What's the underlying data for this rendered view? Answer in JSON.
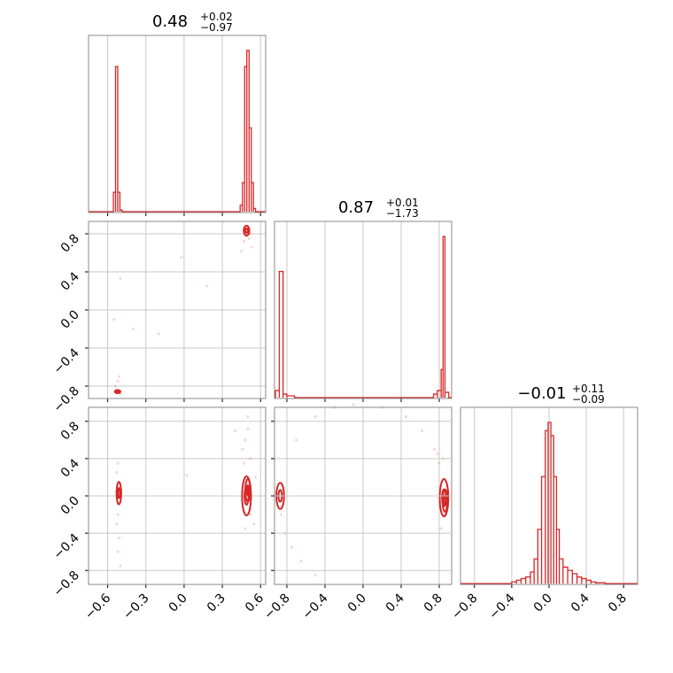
{
  "colors": {
    "main": "#d62728",
    "grid": "#c8c8c8",
    "frame": "#888888"
  },
  "chart_data": [
    {
      "type": "histogram",
      "panel": "hist-p1",
      "title": {
        "value": "0.48",
        "plus": "+0.02",
        "minus": "−0.97"
      },
      "xlim": [
        -0.75,
        0.64
      ],
      "xticks": [
        -0.6,
        -0.3,
        0.0,
        0.3,
        0.6
      ],
      "xtick_labels": [
        "−0.6",
        "−0.3",
        "0.0",
        "0.3",
        "0.6"
      ],
      "bins": [
        [
          -0.555,
          -0.538,
          0.12
        ],
        [
          -0.538,
          -0.521,
          0.9
        ],
        [
          -0.521,
          -0.504,
          0.12
        ],
        [
          -0.504,
          -0.487,
          0.01
        ],
        [
          0.44,
          0.458,
          0.04
        ],
        [
          0.458,
          0.475,
          0.18
        ],
        [
          0.475,
          0.492,
          0.9
        ],
        [
          0.492,
          0.51,
          1.0
        ],
        [
          0.51,
          0.527,
          0.52
        ],
        [
          0.527,
          0.544,
          0.18
        ],
        [
          0.544,
          0.561,
          0.02
        ]
      ]
    },
    {
      "type": "histogram",
      "panel": "hist-p2",
      "title": {
        "value": "0.87",
        "plus": "+0.01",
        "minus": "−1.73"
      },
      "xlim": [
        -0.93,
        0.93
      ],
      "xticks": [
        -0.8,
        -0.4,
        0.0,
        0.4,
        0.8
      ],
      "xtick_labels": [
        "−0.8",
        "−0.4",
        "0.0",
        "0.4",
        "0.8"
      ],
      "bins": [
        [
          -0.92,
          -0.88,
          0.04
        ],
        [
          -0.88,
          -0.84,
          0.72
        ],
        [
          -0.84,
          -0.8,
          0.02
        ],
        [
          -0.8,
          -0.72,
          0.01
        ],
        [
          0.74,
          0.78,
          0.02
        ],
        [
          0.78,
          0.82,
          0.04
        ],
        [
          0.82,
          0.84,
          0.16
        ],
        [
          0.84,
          0.86,
          0.92
        ],
        [
          0.86,
          0.9,
          0.03
        ]
      ]
    },
    {
      "type": "histogram",
      "panel": "hist-p3",
      "title": {
        "value": "−0.01",
        "plus": "+0.11",
        "minus": "−0.09"
      },
      "xlim": [
        -0.95,
        0.95
      ],
      "xticks": [
        -0.8,
        -0.4,
        0.0,
        0.4,
        0.8
      ],
      "xtick_labels": [
        "−0.8",
        "−0.4",
        "0.0",
        "0.4",
        "0.8"
      ],
      "bins": [
        [
          -0.4,
          -0.35,
          0.01
        ],
        [
          -0.35,
          -0.3,
          0.02
        ],
        [
          -0.3,
          -0.25,
          0.03
        ],
        [
          -0.25,
          -0.2,
          0.04
        ],
        [
          -0.2,
          -0.16,
          0.07
        ],
        [
          -0.16,
          -0.12,
          0.15
        ],
        [
          -0.12,
          -0.08,
          0.33
        ],
        [
          -0.08,
          -0.04,
          0.65
        ],
        [
          -0.04,
          -0.01,
          0.93
        ],
        [
          -0.01,
          0.02,
          0.98
        ],
        [
          0.02,
          0.05,
          0.9
        ],
        [
          0.05,
          0.08,
          0.65
        ],
        [
          0.08,
          0.11,
          0.33
        ],
        [
          0.11,
          0.15,
          0.15
        ],
        [
          0.15,
          0.2,
          0.1
        ],
        [
          0.2,
          0.25,
          0.08
        ],
        [
          0.25,
          0.3,
          0.06
        ],
        [
          0.3,
          0.35,
          0.04
        ],
        [
          0.35,
          0.4,
          0.03
        ],
        [
          0.4,
          0.45,
          0.02
        ],
        [
          0.45,
          0.5,
          0.01
        ],
        [
          0.5,
          0.6,
          0.005
        ]
      ]
    },
    {
      "type": "scatter",
      "panel": "scatter-p1-p2",
      "xlim": [
        -0.75,
        0.64
      ],
      "ylim": [
        -0.93,
        0.93
      ],
      "yticks": [
        0.8,
        0.4,
        0.0,
        -0.4,
        -0.8
      ],
      "ytick_labels": [
        "0.8",
        "0.4",
        "0.0",
        "−0.4",
        "−0.8"
      ],
      "points": [
        [
          -0.53,
          -0.84
        ],
        [
          -0.52,
          -0.85
        ],
        [
          -0.51,
          -0.86
        ],
        [
          -0.54,
          -0.8
        ],
        [
          -0.52,
          -0.75
        ],
        [
          -0.5,
          -0.88
        ],
        [
          -0.51,
          -0.7
        ],
        [
          -0.5,
          0.33
        ],
        [
          -0.55,
          -0.1
        ],
        [
          -0.4,
          -0.2
        ],
        [
          -0.2,
          -0.25
        ],
        [
          -0.02,
          0.55
        ],
        [
          0.18,
          0.25
        ],
        [
          0.48,
          0.85
        ],
        [
          0.5,
          0.82
        ],
        [
          0.52,
          0.8
        ],
        [
          0.49,
          0.78
        ],
        [
          0.51,
          0.75
        ],
        [
          0.47,
          0.72
        ],
        [
          0.45,
          0.62
        ],
        [
          0.53,
          0.66
        ]
      ],
      "contours": [
        {
          "center": [
            -0.522,
            -0.858
          ],
          "rx": 0.022,
          "ry": 0.016
        },
        {
          "center": [
            0.49,
            0.833
          ],
          "rx": 0.022,
          "ry": 0.052
        }
      ]
    },
    {
      "type": "scatter",
      "panel": "scatter-p1-p3",
      "xlim": [
        -0.75,
        0.64
      ],
      "ylim": [
        -0.95,
        0.95
      ],
      "yticks": [
        0.8,
        0.4,
        0.0,
        -0.4,
        -0.8
      ],
      "ytick_labels": [
        "0.8",
        "0.4",
        "0.0",
        "−0.4",
        "−0.8"
      ],
      "points": [
        [
          -0.52,
          -0.2
        ],
        [
          -0.53,
          -0.3
        ],
        [
          -0.51,
          -0.45
        ],
        [
          -0.52,
          -0.6
        ],
        [
          -0.5,
          -0.75
        ],
        [
          -0.53,
          0.25
        ],
        [
          -0.52,
          0.35
        ],
        [
          0.02,
          0.22
        ],
        [
          0.46,
          0.5
        ],
        [
          0.48,
          0.6
        ],
        [
          0.5,
          0.72
        ],
        [
          0.52,
          0.4
        ],
        [
          0.55,
          -0.3
        ],
        [
          0.52,
          -0.2
        ],
        [
          0.48,
          -0.35
        ],
        [
          0.56,
          0.2
        ],
        [
          0.47,
          0.35
        ],
        [
          0.5,
          0.85
        ],
        [
          0.4,
          0.7
        ]
      ],
      "contours": [
        {
          "center": [
            -0.512,
            0.03
          ],
          "rx": 0.018,
          "ry": 0.12
        },
        {
          "center": [
            0.49,
            0.0
          ],
          "rx": 0.035,
          "ry": 0.21
        },
        {
          "center": [
            0.5,
            0.06
          ],
          "rx": 0.02,
          "ry": 0.12
        }
      ]
    },
    {
      "type": "scatter",
      "panel": "scatter-p2-p3",
      "xlim": [
        -0.93,
        0.93
      ],
      "ylim": [
        -0.95,
        0.95
      ],
      "points": [
        [
          -0.86,
          -0.2
        ],
        [
          -0.82,
          -0.4
        ],
        [
          -0.75,
          -0.55
        ],
        [
          -0.65,
          -0.7
        ],
        [
          -0.5,
          -0.85
        ],
        [
          -0.7,
          0.6
        ],
        [
          -0.5,
          0.85
        ],
        [
          -0.3,
          0.95
        ],
        [
          -0.1,
          0.98
        ],
        [
          0.2,
          0.95
        ],
        [
          0.45,
          0.85
        ],
        [
          0.62,
          0.7
        ],
        [
          0.75,
          0.5
        ],
        [
          0.8,
          0.35
        ],
        [
          0.86,
          -0.2
        ],
        [
          0.82,
          -0.35
        ],
        [
          0.78,
          0.45
        ],
        [
          0.84,
          0.4
        ]
      ],
      "contours": [
        {
          "center": [
            -0.87,
            0.0
          ],
          "rx": 0.04,
          "ry": 0.14
        },
        {
          "center": [
            0.85,
            -0.02
          ],
          "rx": 0.045,
          "ry": 0.2
        },
        {
          "center": [
            0.86,
            -0.05
          ],
          "rx": 0.025,
          "ry": 0.12
        }
      ]
    }
  ]
}
